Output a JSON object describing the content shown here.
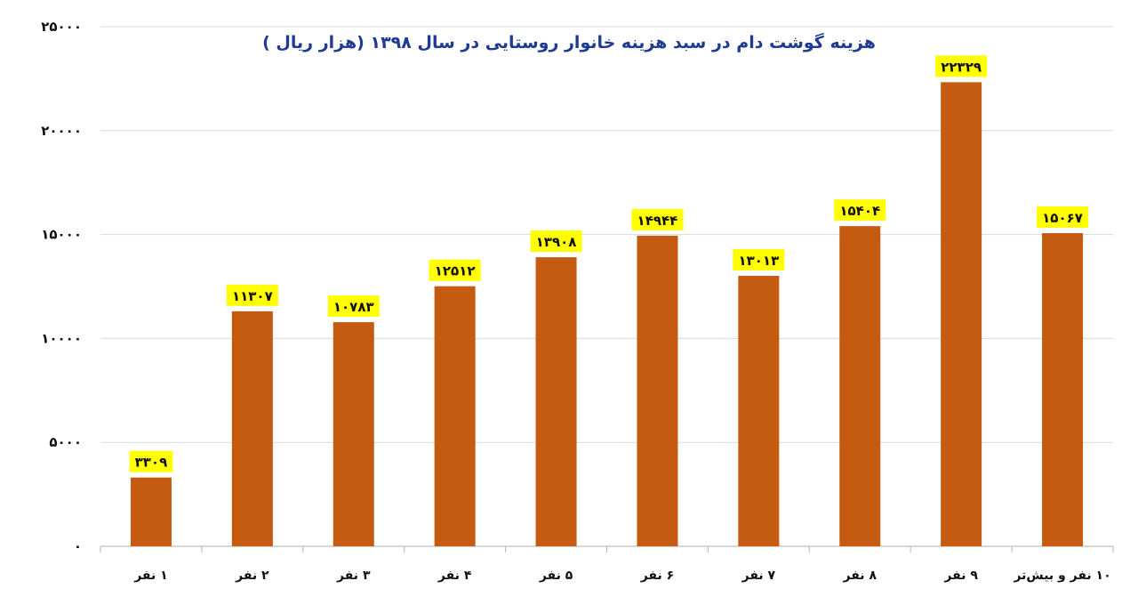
{
  "chart_data": {
    "type": "bar",
    "title": "هزینه گوشت دام در سبد هزینه خانوار روستایی در سال ۱۳۹۸ (هزار ریال )",
    "categories": [
      "۱ نفر",
      "۲ نفر",
      "۳ نفر",
      "۴ نفر",
      "۵ نفر",
      "۶ نفر",
      "۷ نفر",
      "۸ نفر",
      "۹ نفر",
      "۱۰ نفر و بیش‌تر"
    ],
    "values": [
      3309,
      11307,
      10783,
      12512,
      13908,
      14944,
      13013,
      15404,
      22329,
      15067
    ],
    "data_labels": [
      "۳۳۰۹",
      "۱۱۳۰۷",
      "۱۰۷۸۳",
      "۱۲۵۱۲",
      "۱۳۹۰۸",
      "۱۴۹۴۴",
      "۱۳۰۱۳",
      "۱۵۴۰۴",
      "۲۲۳۲۹",
      "۱۵۰۶۷"
    ],
    "y_ticks": [
      0,
      5000,
      10000,
      15000,
      20000,
      25000
    ],
    "y_tick_labels": [
      "۰",
      "۵۰۰۰",
      "۱۰۰۰۰",
      "۱۵۰۰۰",
      "۲۰۰۰۰",
      "۲۵۰۰۰"
    ],
    "ylim": [
      0,
      25000
    ],
    "grid": true,
    "legend": "none",
    "colors": {
      "bar": "#c55a11",
      "label_background": "#ffff00",
      "title": "#1f3a93",
      "grid": "#d9d9d9",
      "axis": "#bfbfbf"
    }
  }
}
